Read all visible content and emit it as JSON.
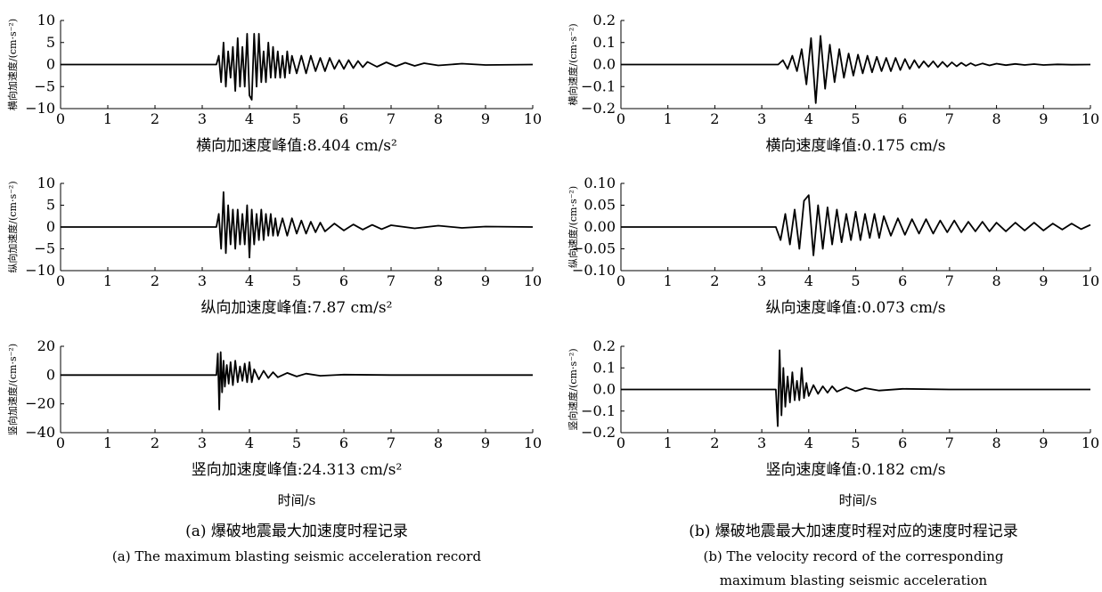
{
  "chart_data": [
    {
      "type": "line",
      "id": "a1",
      "ylabel": "横向加速度/(cm·s⁻²)",
      "xlim": [
        0,
        10
      ],
      "ylim": [
        -10,
        10
      ],
      "xticks": [
        0,
        1,
        2,
        3,
        4,
        5,
        6,
        7,
        8,
        9,
        10
      ],
      "yticks": [
        -10,
        -5,
        0,
        5,
        10
      ],
      "caption": "横向加速度峰值:8.404 cm/s²",
      "series": [
        {
          "x": [
            0,
            3.3,
            3.35,
            3.4,
            3.45,
            3.5,
            3.55,
            3.6,
            3.65,
            3.7,
            3.75,
            3.8,
            3.85,
            3.9,
            3.95,
            4.0,
            4.05,
            4.1,
            4.15,
            4.2,
            4.25,
            4.3,
            4.35,
            4.4,
            4.45,
            4.5,
            4.55,
            4.6,
            4.65,
            4.7,
            4.75,
            4.8,
            4.85,
            4.9,
            5.0,
            5.1,
            5.2,
            5.3,
            5.4,
            5.5,
            5.6,
            5.7,
            5.8,
            5.9,
            6.0,
            6.1,
            6.2,
            6.3,
            6.4,
            6.5,
            6.7,
            6.9,
            7.1,
            7.3,
            7.5,
            7.7,
            8.0,
            8.5,
            9.0,
            10.0
          ],
          "y": [
            0,
            0,
            2,
            -4,
            5,
            -5,
            3,
            -3,
            4,
            -6,
            6,
            -5,
            4,
            -5,
            7,
            -7,
            -8,
            7,
            -5,
            7,
            -4,
            3,
            -4,
            5,
            -3,
            4,
            -3,
            3,
            -3,
            2,
            -3,
            3,
            -2,
            2,
            -2,
            2,
            -2,
            2,
            -1.5,
            1.5,
            -1.5,
            1.5,
            -1,
            1,
            -1,
            1,
            -0.8,
            0.8,
            -0.6,
            0.6,
            -0.5,
            0.5,
            -0.4,
            0.4,
            -0.3,
            0.3,
            -0.2,
            0.2,
            -0.1,
            0
          ]
        }
      ]
    },
    {
      "type": "line",
      "id": "a2",
      "ylabel": "纵向加速度/(cm·s⁻²)",
      "xlim": [
        0,
        10
      ],
      "ylim": [
        -10,
        10
      ],
      "xticks": [
        0,
        1,
        2,
        3,
        4,
        5,
        6,
        7,
        8,
        9,
        10
      ],
      "yticks": [
        -10,
        -5,
        0,
        5,
        10
      ],
      "caption": "纵向加速度峰值:7.87 cm/s²",
      "series": [
        {
          "x": [
            0,
            3.3,
            3.35,
            3.4,
            3.45,
            3.5,
            3.55,
            3.6,
            3.65,
            3.7,
            3.75,
            3.8,
            3.85,
            3.9,
            3.95,
            4.0,
            4.05,
            4.1,
            4.15,
            4.2,
            4.25,
            4.3,
            4.35,
            4.4,
            4.45,
            4.5,
            4.55,
            4.6,
            4.7,
            4.8,
            4.9,
            5.0,
            5.1,
            5.2,
            5.3,
            5.4,
            5.5,
            5.6,
            5.8,
            6.0,
            6.2,
            6.4,
            6.6,
            6.8,
            7.0,
            7.5,
            8.0,
            8.5,
            9.0,
            10.0
          ],
          "y": [
            0,
            0,
            3,
            -5,
            8,
            -6,
            5,
            -4,
            4,
            -5,
            4,
            -4,
            3,
            -4,
            5,
            -7,
            4,
            -4,
            3,
            -3,
            4,
            -3,
            3,
            -2,
            3,
            -2,
            2,
            -2,
            2,
            -2,
            2,
            -1.5,
            1.5,
            -1.5,
            1.2,
            -1.2,
            1,
            -1,
            0.8,
            -0.8,
            0.6,
            -0.6,
            0.5,
            -0.5,
            0.4,
            -0.3,
            0.3,
            -0.2,
            0.1,
            0
          ]
        }
      ]
    },
    {
      "type": "line",
      "id": "a3",
      "ylabel": "竖向加速度/(cm·s⁻²)",
      "xlim": [
        0,
        10
      ],
      "ylim": [
        -40,
        20
      ],
      "xticks": [
        0,
        1,
        2,
        3,
        4,
        5,
        6,
        7,
        8,
        9,
        10
      ],
      "yticks": [
        -40,
        -20,
        0,
        20
      ],
      "caption": "竖向加速度峰值:24.313 cm/s²",
      "series": [
        {
          "x": [
            0,
            3.3,
            3.33,
            3.36,
            3.39,
            3.42,
            3.45,
            3.48,
            3.52,
            3.56,
            3.6,
            3.65,
            3.7,
            3.75,
            3.8,
            3.85,
            3.9,
            3.95,
            4.0,
            4.05,
            4.1,
            4.2,
            4.3,
            4.4,
            4.5,
            4.6,
            4.8,
            5.0,
            5.2,
            5.5,
            6.0,
            7.0,
            8.0,
            10.0
          ],
          "y": [
            0,
            0,
            15,
            -24,
            16,
            -12,
            10,
            -8,
            7,
            -6,
            9,
            -7,
            10,
            -5,
            6,
            -4,
            8,
            -5,
            9,
            -5,
            4,
            -3,
            3,
            -2,
            2,
            -1.5,
            1.5,
            -1,
            1,
            -0.5,
            0.3,
            0,
            0,
            0
          ]
        }
      ]
    },
    {
      "type": "line",
      "id": "b1",
      "ylabel": "横向速度/(cm·s⁻²)",
      "xlim": [
        0,
        10
      ],
      "ylim": [
        -0.2,
        0.2
      ],
      "xticks": [
        0,
        1,
        2,
        3,
        4,
        5,
        6,
        7,
        8,
        9,
        10
      ],
      "yticks": [
        -0.2,
        -0.1,
        0,
        0.1,
        0.2
      ],
      "caption": "横向速度峰值:0.175 cm/s",
      "series": [
        {
          "x": [
            0,
            3.35,
            3.45,
            3.55,
            3.65,
            3.75,
            3.85,
            3.95,
            4.05,
            4.15,
            4.25,
            4.35,
            4.45,
            4.55,
            4.65,
            4.75,
            4.85,
            4.95,
            5.05,
            5.15,
            5.25,
            5.35,
            5.45,
            5.55,
            5.65,
            5.75,
            5.85,
            5.95,
            6.05,
            6.15,
            6.25,
            6.35,
            6.45,
            6.55,
            6.65,
            6.75,
            6.85,
            6.95,
            7.05,
            7.15,
            7.25,
            7.35,
            7.45,
            7.55,
            7.7,
            7.85,
            8.0,
            8.2,
            8.4,
            8.6,
            8.8,
            9.0,
            9.3,
            9.6,
            10.0
          ],
          "y": [
            0,
            0,
            0.02,
            -0.02,
            0.04,
            -0.03,
            0.07,
            -0.09,
            0.12,
            -0.175,
            0.13,
            -0.11,
            0.09,
            -0.08,
            0.07,
            -0.06,
            0.05,
            -0.05,
            0.045,
            -0.04,
            0.04,
            -0.035,
            0.035,
            -0.03,
            0.03,
            -0.03,
            0.03,
            -0.025,
            0.025,
            -0.02,
            0.02,
            -0.015,
            0.015,
            -0.01,
            0.015,
            -0.012,
            0.012,
            -0.01,
            0.01,
            -0.008,
            0.008,
            -0.006,
            0.006,
            -0.005,
            0.005,
            -0.004,
            0.004,
            -0.003,
            0.003,
            -0.002,
            0.002,
            -0.002,
            0.001,
            -0.001,
            0
          ]
        }
      ]
    },
    {
      "type": "line",
      "id": "b2",
      "ylabel": "纵向速度/(cm·s⁻²)",
      "xlim": [
        0,
        10
      ],
      "ylim": [
        -0.1,
        0.1
      ],
      "xticks": [
        0,
        1,
        2,
        3,
        4,
        5,
        6,
        7,
        8,
        9,
        10
      ],
      "yticks": [
        -0.1,
        -0.05,
        0,
        0.05,
        0.1
      ],
      "caption": "纵向速度峰值:0.073 cm/s",
      "series": [
        {
          "x": [
            0,
            3.3,
            3.4,
            3.5,
            3.6,
            3.7,
            3.8,
            3.9,
            4.0,
            4.1,
            4.2,
            4.3,
            4.4,
            4.5,
            4.6,
            4.7,
            4.8,
            4.9,
            5.0,
            5.1,
            5.2,
            5.3,
            5.4,
            5.5,
            5.6,
            5.75,
            5.9,
            6.05,
            6.2,
            6.35,
            6.5,
            6.65,
            6.8,
            6.95,
            7.1,
            7.25,
            7.4,
            7.55,
            7.7,
            7.85,
            8.0,
            8.2,
            8.4,
            8.6,
            8.8,
            9.0,
            9.2,
            9.4,
            9.6,
            9.8,
            10.0
          ],
          "y": [
            0,
            0,
            -0.03,
            0.03,
            -0.04,
            0.04,
            -0.05,
            0.06,
            0.073,
            -0.065,
            0.05,
            -0.05,
            0.045,
            -0.04,
            0.04,
            -0.035,
            0.03,
            -0.03,
            0.035,
            -0.03,
            0.03,
            -0.025,
            0.03,
            -0.025,
            0.025,
            -0.02,
            0.02,
            -0.018,
            0.018,
            -0.015,
            0.018,
            -0.015,
            0.015,
            -0.012,
            0.015,
            -0.012,
            0.012,
            -0.01,
            0.012,
            -0.01,
            0.01,
            -0.01,
            0.01,
            -0.008,
            0.01,
            -0.008,
            0.008,
            -0.006,
            0.008,
            -0.005,
            0.005
          ]
        }
      ]
    },
    {
      "type": "line",
      "id": "b3",
      "ylabel": "竖向速度/(cm·s⁻²)",
      "xlim": [
        0,
        10
      ],
      "ylim": [
        -0.2,
        0.2
      ],
      "xticks": [
        0,
        1,
        2,
        3,
        4,
        5,
        6,
        7,
        8,
        9,
        10
      ],
      "yticks": [
        -0.2,
        -0.1,
        0,
        0.1,
        0.2
      ],
      "caption": "竖向速度峰值:0.182 cm/s",
      "series": [
        {
          "x": [
            0,
            3.3,
            3.34,
            3.38,
            3.42,
            3.46,
            3.5,
            3.55,
            3.6,
            3.65,
            3.7,
            3.75,
            3.8,
            3.85,
            3.9,
            3.95,
            4.0,
            4.1,
            4.2,
            4.3,
            4.4,
            4.5,
            4.6,
            4.8,
            5.0,
            5.2,
            5.5,
            6.0,
            7.0,
            8.0,
            10.0
          ],
          "y": [
            0,
            0,
            -0.17,
            0.182,
            -0.12,
            0.1,
            -0.08,
            0.06,
            -0.06,
            0.08,
            -0.05,
            0.04,
            -0.05,
            0.1,
            -0.04,
            0.03,
            -0.03,
            0.02,
            -0.02,
            0.015,
            -0.015,
            0.015,
            -0.01,
            0.01,
            -0.008,
            0.006,
            -0.005,
            0.003,
            0,
            0,
            0
          ]
        }
      ]
    }
  ],
  "xlabel_a": "时间/s",
  "xlabel_b": "时间/s",
  "caption_a_cn": "(a) 爆破地震最大加速度时程记录",
  "caption_a_en": "(a) The maximum blasting seismic acceleration record",
  "caption_b_cn": "(b) 爆破地震最大加速度时程对应的速度时程记录",
  "caption_b_en1": "(b) The velocity record of the corresponding",
  "caption_b_en2": "maximum blasting seismic acceleration"
}
